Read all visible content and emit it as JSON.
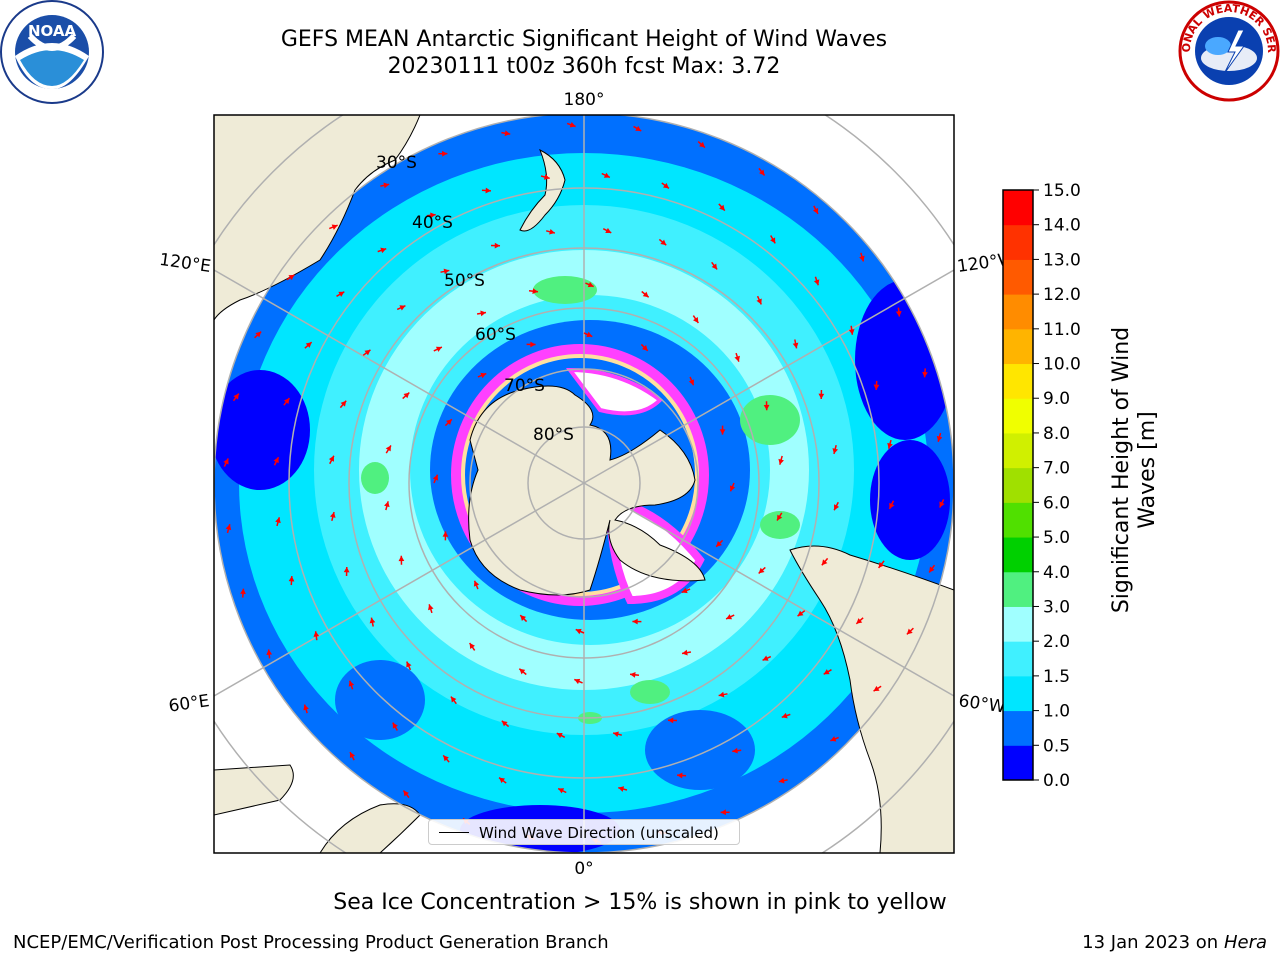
{
  "title": {
    "line1": "GEFS MEAN Antarctic Significant Height of Wind Waves",
    "line2": "20230111 t00z 360h fcst   Max: 3.72"
  },
  "logos": {
    "left": "NOAA",
    "right_text": "NATIONAL WEATHER SERVICE"
  },
  "map": {
    "projection": "south-polar-stereographic",
    "longitude_labels": [
      "180°",
      "120°E",
      "120°W",
      "60°E",
      "60°W",
      "0°"
    ],
    "latitude_labels": [
      "30°S",
      "40°S",
      "50°S",
      "60°S",
      "70°S",
      "80°S"
    ],
    "colors": {
      "land": "#efebd7",
      "grid": "#b0b0b0",
      "arrow": "#ff0000",
      "ice_pink": "#ff40ff",
      "ice_white": "#ffffff"
    }
  },
  "legend": {
    "label": "Wind Wave Direction (unscaled)"
  },
  "colorbar": {
    "label": "Significant Height of Wind Waves [m]",
    "ticks": [
      "0.0",
      "0.5",
      "1.0",
      "1.5",
      "2.0",
      "3.0",
      "4.0",
      "5.0",
      "6.0",
      "7.0",
      "8.0",
      "9.0",
      "10.0",
      "11.0",
      "12.0",
      "13.0",
      "14.0",
      "15.0"
    ],
    "colors": [
      "#0000ff",
      "#0070ff",
      "#00e6ff",
      "#40f0ff",
      "#a0ffff",
      "#50f080",
      "#00d000",
      "#50e000",
      "#a0e000",
      "#d0f000",
      "#f0ff00",
      "#ffe600",
      "#ffb400",
      "#ff8c00",
      "#ff5a00",
      "#ff3200",
      "#ff0000"
    ]
  },
  "chart_data": {
    "type": "map",
    "field": "Significant Height of Wind Waves",
    "units": "m",
    "run": "20230111 t00z",
    "forecast_hour": 360,
    "max": 3.72,
    "levels": [
      0.0,
      0.5,
      1.0,
      1.5,
      2.0,
      3.0,
      4.0,
      5.0,
      6.0,
      7.0,
      8.0,
      9.0,
      10.0,
      11.0,
      12.0,
      13.0,
      14.0,
      15.0
    ]
  },
  "notes": {
    "ice": "Sea Ice Concentration > 15% is shown in pink to yellow"
  },
  "footer": {
    "left": "NCEP/EMC/Verification Post Processing Product Generation Branch",
    "right_date": "13 Jan 2023 on",
    "right_machine": "Hera"
  }
}
